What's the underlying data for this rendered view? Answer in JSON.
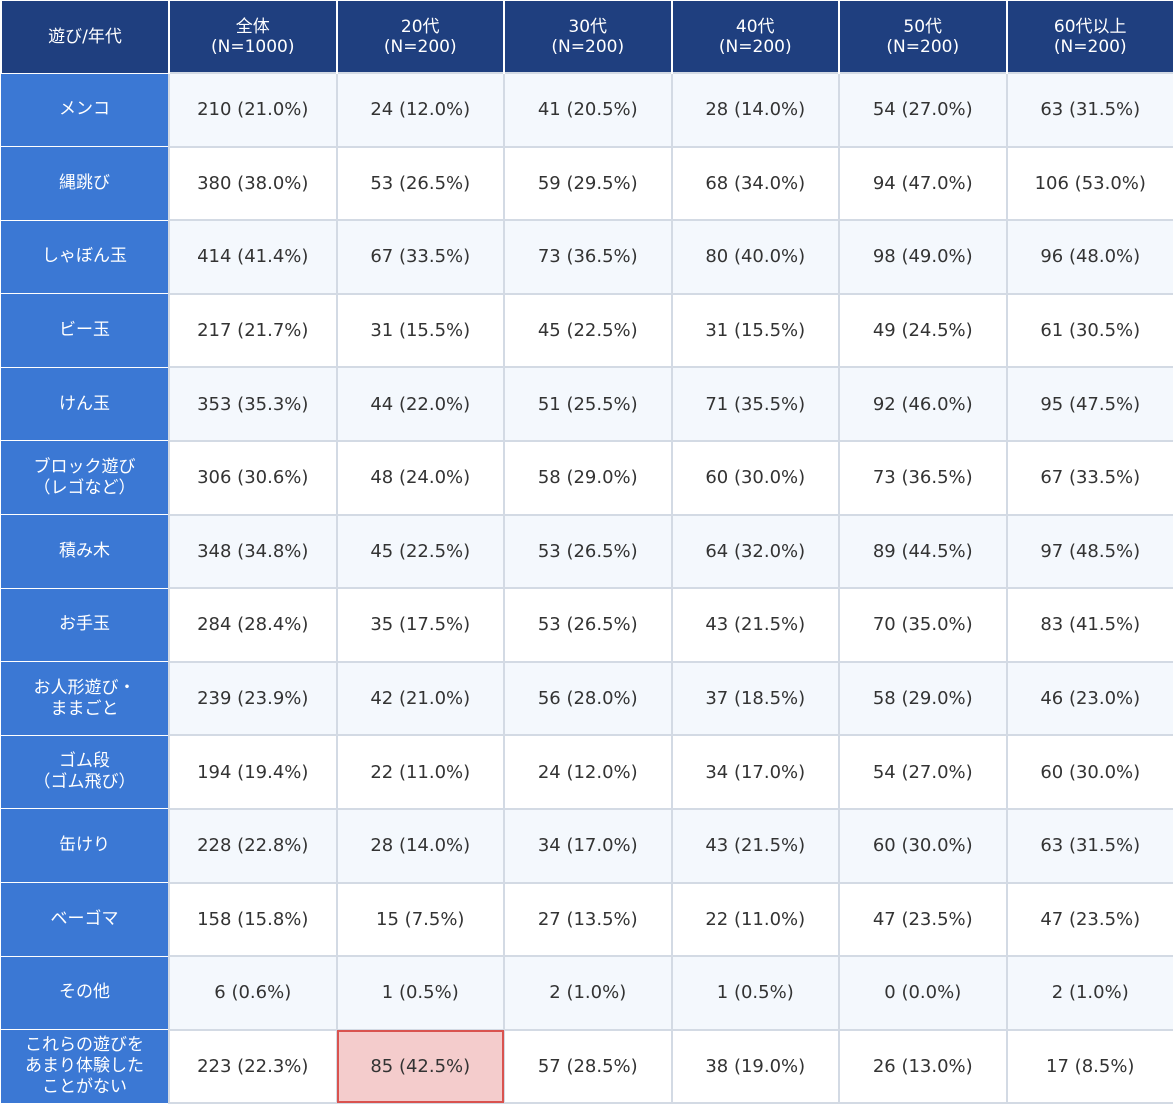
{
  "header": {
    "corner": "遊び/年代",
    "columns": [
      {
        "label": "全体",
        "n": "(N=1000)"
      },
      {
        "label": "20代",
        "n": "(N=200)"
      },
      {
        "label": "30代",
        "n": "(N=200)"
      },
      {
        "label": "40代",
        "n": "(N=200)"
      },
      {
        "label": "50代",
        "n": "(N=200)"
      },
      {
        "label": "60代以上",
        "n": "(N=200)"
      }
    ]
  },
  "rows": [
    {
      "lines": [
        "メンコ"
      ],
      "cells": [
        "210 (21.0%)",
        "24 (12.0%)",
        "41 (20.5%)",
        "28 (14.0%)",
        "54 (27.0%)",
        "63 (31.5%)"
      ]
    },
    {
      "lines": [
        "縄跳び"
      ],
      "cells": [
        "380 (38.0%)",
        "53 (26.5%)",
        "59 (29.5%)",
        "68 (34.0%)",
        "94 (47.0%)",
        "106 (53.0%)"
      ]
    },
    {
      "lines": [
        "しゃぼん玉"
      ],
      "cells": [
        "414 (41.4%)",
        "67 (33.5%)",
        "73 (36.5%)",
        "80 (40.0%)",
        "98 (49.0%)",
        "96 (48.0%)"
      ]
    },
    {
      "lines": [
        "ビー玉"
      ],
      "cells": [
        "217 (21.7%)",
        "31 (15.5%)",
        "45 (22.5%)",
        "31 (15.5%)",
        "49 (24.5%)",
        "61 (30.5%)"
      ]
    },
    {
      "lines": [
        "けん玉"
      ],
      "cells": [
        "353 (35.3%)",
        "44 (22.0%)",
        "51 (25.5%)",
        "71 (35.5%)",
        "92 (46.0%)",
        "95 (47.5%)"
      ]
    },
    {
      "lines": [
        "ブロック遊び",
        "（レゴなど）"
      ],
      "cells": [
        "306 (30.6%)",
        "48 (24.0%)",
        "58 (29.0%)",
        "60 (30.0%)",
        "73 (36.5%)",
        "67 (33.5%)"
      ]
    },
    {
      "lines": [
        "積み木"
      ],
      "cells": [
        "348 (34.8%)",
        "45 (22.5%)",
        "53 (26.5%)",
        "64 (32.0%)",
        "89 (44.5%)",
        "97 (48.5%)"
      ]
    },
    {
      "lines": [
        "お手玉"
      ],
      "cells": [
        "284 (28.4%)",
        "35 (17.5%)",
        "53 (26.5%)",
        "43 (21.5%)",
        "70 (35.0%)",
        "83 (41.5%)"
      ]
    },
    {
      "lines": [
        "お人形遊び・",
        "ままごと"
      ],
      "cells": [
        "239 (23.9%)",
        "42 (21.0%)",
        "56 (28.0%)",
        "37 (18.5%)",
        "58 (29.0%)",
        "46 (23.0%)"
      ]
    },
    {
      "lines": [
        "ゴム段",
        "（ゴム飛び）"
      ],
      "cells": [
        "194 (19.4%)",
        "22 (11.0%)",
        "24 (12.0%)",
        "34 (17.0%)",
        "54 (27.0%)",
        "60 (30.0%)"
      ]
    },
    {
      "lines": [
        "缶けり"
      ],
      "cells": [
        "228 (22.8%)",
        "28 (14.0%)",
        "34 (17.0%)",
        "43 (21.5%)",
        "60 (30.0%)",
        "63 (31.5%)"
      ]
    },
    {
      "lines": [
        "ベーゴマ"
      ],
      "cells": [
        "158 (15.8%)",
        "15 (7.5%)",
        "27 (13.5%)",
        "22 (11.0%)",
        "47 (23.5%)",
        "47 (23.5%)"
      ]
    },
    {
      "lines": [
        "その他"
      ],
      "cells": [
        "6 (0.6%)",
        "1 (0.5%)",
        "2 (1.0%)",
        "1 (0.5%)",
        "0 (0.0%)",
        "2 (1.0%)"
      ]
    },
    {
      "lines": [
        "これらの遊びを",
        "あまり体験した",
        "ことがない"
      ],
      "cells": [
        "223 (22.3%)",
        "85 (42.5%)",
        "57 (28.5%)",
        "38 (19.0%)",
        "26 (13.0%)",
        "17 (8.5%)"
      ],
      "highlight_index": 1
    }
  ],
  "colors": {
    "header_bg": "#1f3f7f",
    "row_header_bg": "#3b78d4",
    "highlight_bg": "#f4cccc",
    "highlight_border": "#d9534f"
  }
}
